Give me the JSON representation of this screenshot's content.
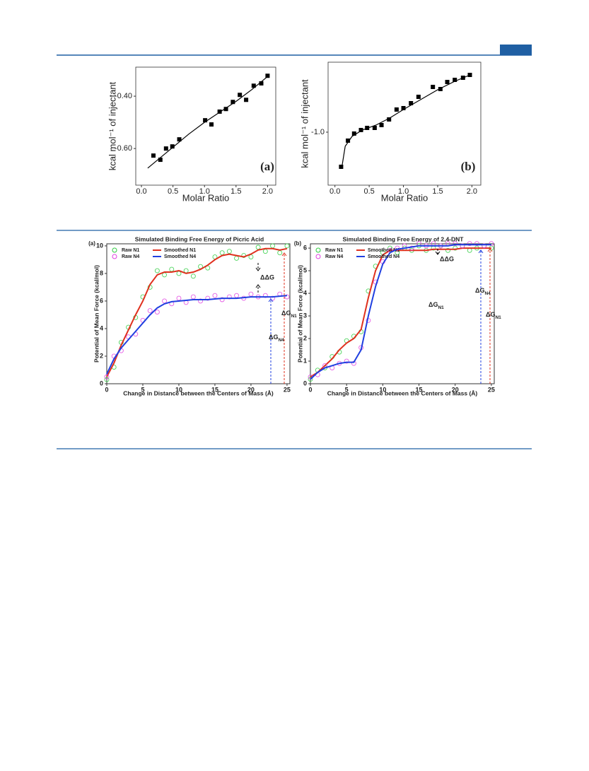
{
  "chart_data": [
    {
      "type": "scatter",
      "panel_label": "(a)",
      "xlabel": "Molar Ratio",
      "ylabel": "kcal mol⁻¹ of injectant",
      "xlim": [
        -0.09,
        2.13
      ],
      "xticks": [
        {
          "value": 0,
          "label": "0.0"
        },
        0.5,
        {
          "value": 1,
          "label": "1.0"
        },
        1.5,
        {
          "value": 2,
          "label": "2.0"
        }
      ],
      "ylim": [
        -0.74,
        -0.289
      ],
      "yticks": [
        {
          "value": -0.4,
          "label": "-0.40"
        },
        {
          "value": -0.6,
          "label": "-0.60"
        }
      ],
      "series": [
        {
          "style": "markers",
          "color": "#000000",
          "x": [
            0.19,
            0.3,
            0.39,
            0.49,
            0.6,
            1.01,
            1.11,
            1.24,
            1.34,
            1.45,
            1.56,
            1.66,
            1.78,
            1.9,
            2.0
          ],
          "values": [
            -0.627,
            -0.643,
            -0.6,
            -0.592,
            -0.565,
            -0.492,
            -0.508,
            -0.459,
            -0.449,
            -0.422,
            -0.395,
            -0.414,
            -0.36,
            -0.351,
            -0.322
          ]
        },
        {
          "style": "line",
          "color": "#000000",
          "x": [
            0.1,
            0.3,
            0.5,
            0.75,
            1.0,
            1.25,
            1.5,
            1.75,
            2.0
          ],
          "values": [
            -0.675,
            -0.635,
            -0.595,
            -0.545,
            -0.5,
            -0.46,
            -0.42,
            -0.375,
            -0.325
          ]
        }
      ]
    },
    {
      "type": "scatter",
      "panel_label": "(b)",
      "xlabel": "Molar Ratio",
      "ylabel": "kcal mol⁻¹ of injectant",
      "xlim": [
        -0.1,
        2.13
      ],
      "xticks": [
        {
          "value": 0,
          "label": "0.0"
        },
        0.5,
        {
          "value": 1,
          "label": "1.0"
        },
        1.5,
        {
          "value": 2,
          "label": "2.0"
        }
      ],
      "ylim": [
        -1.375,
        -0.505
      ],
      "yticks": [
        {
          "value": -1,
          "label": "-1.0"
        }
      ],
      "series": [
        {
          "style": "markers",
          "color": "#000000",
          "x": [
            0.09,
            0.19,
            0.28,
            0.38,
            0.47,
            0.58,
            0.68,
            0.79,
            0.9,
            1.0,
            1.11,
            1.22,
            1.43,
            1.54,
            1.64,
            1.75,
            1.87,
            1.97
          ],
          "values": [
            -1.245,
            -1.06,
            -1.01,
            -0.985,
            -0.97,
            -0.97,
            -0.95,
            -0.91,
            -0.84,
            -0.83,
            -0.795,
            -0.75,
            -0.68,
            -0.695,
            -0.645,
            -0.63,
            -0.615,
            -0.595
          ]
        },
        {
          "style": "line",
          "color": "#000000",
          "x": [
            0.1,
            0.15,
            0.25,
            0.4,
            0.6,
            0.8,
            1.0,
            1.25,
            1.5,
            1.75,
            2.0
          ],
          "values": [
            -1.25,
            -1.1,
            -1.03,
            -0.985,
            -0.95,
            -0.9,
            -0.84,
            -0.77,
            -0.7,
            -0.64,
            -0.59
          ]
        }
      ]
    },
    {
      "type": "line",
      "panel_label": "(a)",
      "title": "Simulated Binding Free Energy of Picric Acid",
      "xlabel": "Change in Distance between the Centers of Mass (Å)",
      "ylabel": "Potential of Mean Force (kcal/mol)",
      "xlim": [
        0,
        25.4
      ],
      "xticks": [
        0,
        5,
        10,
        15,
        20,
        25
      ],
      "ylim": [
        0,
        10.15
      ],
      "yticks": [
        0,
        2,
        4,
        6,
        8,
        10
      ],
      "x": [
        0,
        1,
        2,
        3,
        4,
        5,
        6,
        7,
        8,
        9,
        10,
        11,
        12,
        13,
        14,
        15,
        16,
        17,
        18,
        19,
        20,
        21,
        22,
        23,
        24,
        25
      ],
      "series": [
        {
          "name": "Raw N1",
          "style": "markers",
          "color": "#2ecc40",
          "values": [
            0.3,
            1.2,
            3.0,
            4.1,
            4.8,
            6.3,
            7.0,
            8.2,
            7.9,
            8.3,
            8.0,
            8.2,
            7.8,
            8.5,
            8.4,
            9.2,
            9.5,
            9.6,
            9.1,
            9.3,
            9.2,
            9.9,
            9.6,
            10.0,
            9.5,
            10.0
          ]
        },
        {
          "name": "Smoothed N1",
          "style": "line",
          "color": "#e0301e",
          "values": [
            0.5,
            1.5,
            2.8,
            3.9,
            5.0,
            6.0,
            7.2,
            7.9,
            8.1,
            8.1,
            8.2,
            8.0,
            8.1,
            8.3,
            8.6,
            9.0,
            9.3,
            9.4,
            9.3,
            9.2,
            9.4,
            9.7,
            9.8,
            9.8,
            9.7,
            9.8
          ]
        },
        {
          "name": "Raw N4",
          "style": "markers",
          "color": "#e040e0",
          "values": [
            0.5,
            2.0,
            2.4,
            3.4,
            3.6,
            4.6,
            5.3,
            5.2,
            6.0,
            5.8,
            6.2,
            5.9,
            6.3,
            6.0,
            6.2,
            6.4,
            6.1,
            6.3,
            6.4,
            6.2,
            6.5,
            6.3,
            6.4,
            6.2,
            6.5,
            6.3
          ]
        },
        {
          "name": "Smoothed N4",
          "style": "line",
          "color": "#2040e0",
          "values": [
            0.7,
            1.8,
            2.6,
            3.2,
            3.8,
            4.4,
            5.0,
            5.5,
            5.8,
            5.95,
            6.0,
            6.05,
            6.1,
            6.1,
            6.1,
            6.15,
            6.2,
            6.2,
            6.2,
            6.25,
            6.3,
            6.3,
            6.3,
            6.3,
            6.35,
            6.4
          ]
        }
      ],
      "annotations": [
        "ΔΔG",
        {
          "text": "ΔG",
          "subscript": "N1"
        },
        {
          "text": "ΔG",
          "subscript": "N4"
        }
      ]
    },
    {
      "type": "line",
      "panel_label": "(b)",
      "title": "Simulated Binding Free Energy of 2,4-DNT",
      "xlabel": "Change in Distance between the Centers of Mass (Å)",
      "ylabel": "Potential of Mean Force (kcal/mol)",
      "xlim": [
        0,
        25.4
      ],
      "xticks": [
        0,
        5,
        10,
        15,
        20,
        25
      ],
      "ylim": [
        0,
        6.19
      ],
      "yticks": [
        0,
        1,
        2,
        3,
        4,
        5,
        6
      ],
      "x": [
        0,
        1,
        2,
        3,
        4,
        5,
        6,
        7,
        8,
        9,
        10,
        11,
        12,
        13,
        14,
        15,
        16,
        17,
        18,
        19,
        20,
        21,
        22,
        23,
        24,
        25
      ],
      "series": [
        {
          "name": "Raw N1",
          "style": "markers",
          "color": "#2ecc40",
          "values": [
            0.2,
            0.6,
            0.7,
            1.2,
            1.4,
            1.9,
            2.1,
            2.3,
            4.1,
            5.2,
            5.8,
            6.0,
            5.8,
            6.0,
            5.9,
            6.1,
            5.9,
            6.0,
            6.1,
            5.9,
            6.0,
            6.1,
            5.9,
            6.0,
            6.1,
            6.0
          ]
        },
        {
          "name": "Smoothed N1",
          "style": "line",
          "color": "#e0301e",
          "values": [
            0.3,
            0.5,
            0.8,
            1.1,
            1.5,
            1.8,
            2.0,
            2.4,
            3.8,
            5.0,
            5.7,
            5.9,
            5.9,
            5.9,
            5.9,
            5.9,
            5.9,
            5.95,
            5.95,
            5.95,
            5.95,
            6.0,
            6.0,
            6.0,
            6.0,
            6.0
          ]
        },
        {
          "name": "Raw N4",
          "style": "markers",
          "color": "#e040e0",
          "values": [
            0.3,
            0.4,
            0.8,
            0.7,
            0.9,
            1.0,
            0.9,
            1.6,
            2.8,
            4.5,
            5.4,
            5.9,
            6.0,
            6.1,
            6.0,
            6.2,
            6.1,
            6.2,
            6.1,
            6.2,
            6.2,
            6.1,
            6.2,
            6.2,
            6.1,
            6.2
          ]
        },
        {
          "name": "Smoothed N4",
          "style": "line",
          "color": "#2040e0",
          "values": [
            0.2,
            0.5,
            0.7,
            0.8,
            0.9,
            0.95,
            0.95,
            1.5,
            3.0,
            4.3,
            5.3,
            5.8,
            5.95,
            6.0,
            6.05,
            6.1,
            6.1,
            6.1,
            6.1,
            6.1,
            6.15,
            6.15,
            6.15,
            6.15,
            6.15,
            6.15
          ]
        }
      ],
      "annotations": [
        "ΔΔG",
        {
          "text": "ΔG",
          "subscript": "N1"
        },
        {
          "text": "ΔG",
          "subscript": "N4"
        },
        {
          "text": "ΔG",
          "subscript": "N1"
        }
      ]
    }
  ]
}
